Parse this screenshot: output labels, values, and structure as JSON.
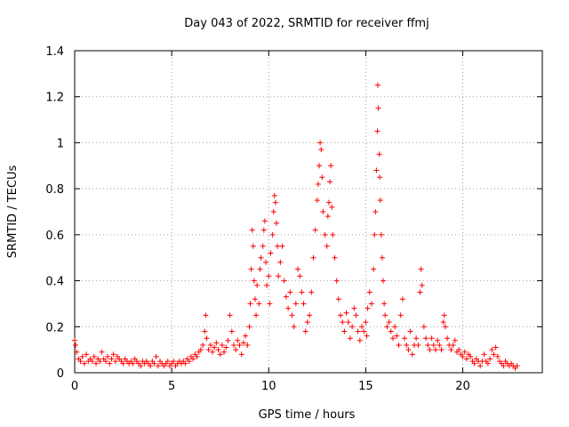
{
  "chart_data": {
    "type": "scatter",
    "title": "Day 043 of 2022, SRMTID for receiver ffmj",
    "xlabel": "GPS time / hours",
    "ylabel": "SRMTID / TECUs",
    "xlim": [
      0,
      24.1
    ],
    "ylim": [
      0,
      1.4
    ],
    "xticks": [
      0,
      5,
      10,
      15,
      20
    ],
    "xtick_labels": [
      "0",
      "5",
      "10",
      "15",
      "20"
    ],
    "yticks": [
      0,
      0.2,
      0.4,
      0.6,
      0.8,
      1.0,
      1.2,
      1.4
    ],
    "ytick_labels": [
      "0",
      "0.2",
      "0.4",
      "0.6",
      "0.8",
      "1",
      "1.2",
      "1.4"
    ],
    "grid": true,
    "marker": "+",
    "color": "#ff0000",
    "series": [
      {
        "name": "SRMTID",
        "points": [
          [
            0.0,
            0.14
          ],
          [
            0.05,
            0.12
          ],
          [
            0.1,
            0.09
          ],
          [
            0.2,
            0.06
          ],
          [
            0.3,
            0.05
          ],
          [
            0.4,
            0.07
          ],
          [
            0.5,
            0.04
          ],
          [
            0.6,
            0.08
          ],
          [
            0.7,
            0.05
          ],
          [
            0.8,
            0.06
          ],
          [
            0.9,
            0.05
          ],
          [
            1.0,
            0.07
          ],
          [
            1.1,
            0.04
          ],
          [
            1.2,
            0.06
          ],
          [
            1.3,
            0.05
          ],
          [
            1.4,
            0.09
          ],
          [
            1.5,
            0.06
          ],
          [
            1.6,
            0.05
          ],
          [
            1.7,
            0.07
          ],
          [
            1.8,
            0.04
          ],
          [
            1.9,
            0.06
          ],
          [
            2.0,
            0.08
          ],
          [
            2.1,
            0.05
          ],
          [
            2.2,
            0.07
          ],
          [
            2.3,
            0.06
          ],
          [
            2.4,
            0.05
          ],
          [
            2.5,
            0.04
          ],
          [
            2.6,
            0.06
          ],
          [
            2.7,
            0.05
          ],
          [
            2.8,
            0.04
          ],
          [
            2.9,
            0.05
          ],
          [
            3.0,
            0.04
          ],
          [
            3.1,
            0.06
          ],
          [
            3.2,
            0.05
          ],
          [
            3.3,
            0.04
          ],
          [
            3.4,
            0.03
          ],
          [
            3.5,
            0.05
          ],
          [
            3.6,
            0.04
          ],
          [
            3.7,
            0.05
          ],
          [
            3.8,
            0.04
          ],
          [
            3.9,
            0.03
          ],
          [
            4.0,
            0.05
          ],
          [
            4.1,
            0.04
          ],
          [
            4.2,
            0.07
          ],
          [
            4.3,
            0.03
          ],
          [
            4.4,
            0.05
          ],
          [
            4.5,
            0.04
          ],
          [
            4.6,
            0.03
          ],
          [
            4.7,
            0.04
          ],
          [
            4.8,
            0.05
          ],
          [
            4.9,
            0.03
          ],
          [
            5.0,
            0.04
          ],
          [
            5.1,
            0.05
          ],
          [
            5.2,
            0.03
          ],
          [
            5.3,
            0.04
          ],
          [
            5.4,
            0.05
          ],
          [
            5.5,
            0.04
          ],
          [
            5.6,
            0.05
          ],
          [
            5.7,
            0.04
          ],
          [
            5.8,
            0.06
          ],
          [
            5.9,
            0.05
          ],
          [
            6.0,
            0.07
          ],
          [
            6.1,
            0.06
          ],
          [
            6.2,
            0.08
          ],
          [
            6.3,
            0.07
          ],
          [
            6.4,
            0.09
          ],
          [
            6.5,
            0.1
          ],
          [
            6.6,
            0.12
          ],
          [
            6.7,
            0.18
          ],
          [
            6.75,
            0.25
          ],
          [
            6.8,
            0.15
          ],
          [
            6.9,
            0.1
          ],
          [
            7.0,
            0.12
          ],
          [
            7.1,
            0.09
          ],
          [
            7.2,
            0.11
          ],
          [
            7.3,
            0.13
          ],
          [
            7.4,
            0.1
          ],
          [
            7.5,
            0.08
          ],
          [
            7.6,
            0.12
          ],
          [
            7.7,
            0.09
          ],
          [
            7.8,
            0.11
          ],
          [
            7.9,
            0.14
          ],
          [
            8.0,
            0.25
          ],
          [
            8.1,
            0.18
          ],
          [
            8.2,
            0.12
          ],
          [
            8.3,
            0.1
          ],
          [
            8.4,
            0.14
          ],
          [
            8.5,
            0.12
          ],
          [
            8.6,
            0.08
          ],
          [
            8.7,
            0.13
          ],
          [
            8.8,
            0.16
          ],
          [
            8.9,
            0.12
          ],
          [
            9.0,
            0.2
          ],
          [
            9.05,
            0.3
          ],
          [
            9.1,
            0.45
          ],
          [
            9.15,
            0.62
          ],
          [
            9.2,
            0.55
          ],
          [
            9.25,
            0.4
          ],
          [
            9.3,
            0.32
          ],
          [
            9.35,
            0.25
          ],
          [
            9.4,
            0.38
          ],
          [
            9.5,
            0.3
          ],
          [
            9.55,
            0.45
          ],
          [
            9.6,
            0.5
          ],
          [
            9.7,
            0.55
          ],
          [
            9.75,
            0.62
          ],
          [
            9.8,
            0.66
          ],
          [
            9.85,
            0.48
          ],
          [
            9.9,
            0.38
          ],
          [
            10.0,
            0.42
          ],
          [
            10.05,
            0.3
          ],
          [
            10.1,
            0.52
          ],
          [
            10.2,
            0.6
          ],
          [
            10.25,
            0.7
          ],
          [
            10.3,
            0.77
          ],
          [
            10.35,
            0.74
          ],
          [
            10.4,
            0.65
          ],
          [
            10.45,
            0.55
          ],
          [
            10.5,
            0.42
          ],
          [
            10.6,
            0.48
          ],
          [
            10.7,
            0.55
          ],
          [
            10.8,
            0.4
          ],
          [
            10.9,
            0.33
          ],
          [
            11.0,
            0.28
          ],
          [
            11.1,
            0.35
          ],
          [
            11.2,
            0.25
          ],
          [
            11.3,
            0.2
          ],
          [
            11.4,
            0.3
          ],
          [
            11.5,
            0.45
          ],
          [
            11.6,
            0.42
          ],
          [
            11.7,
            0.35
          ],
          [
            11.8,
            0.3
          ],
          [
            11.9,
            0.18
          ],
          [
            12.0,
            0.22
          ],
          [
            12.1,
            0.25
          ],
          [
            12.2,
            0.35
          ],
          [
            12.3,
            0.5
          ],
          [
            12.4,
            0.62
          ],
          [
            12.5,
            0.75
          ],
          [
            12.55,
            0.82
          ],
          [
            12.6,
            0.9
          ],
          [
            12.65,
            1.0
          ],
          [
            12.7,
            0.97
          ],
          [
            12.75,
            0.85
          ],
          [
            12.8,
            0.7
          ],
          [
            12.9,
            0.6
          ],
          [
            13.0,
            0.55
          ],
          [
            13.05,
            0.68
          ],
          [
            13.1,
            0.74
          ],
          [
            13.15,
            0.83
          ],
          [
            13.2,
            0.9
          ],
          [
            13.25,
            0.72
          ],
          [
            13.3,
            0.6
          ],
          [
            13.4,
            0.5
          ],
          [
            13.5,
            0.4
          ],
          [
            13.6,
            0.32
          ],
          [
            13.7,
            0.25
          ],
          [
            13.8,
            0.22
          ],
          [
            13.9,
            0.18
          ],
          [
            14.0,
            0.26
          ],
          [
            14.1,
            0.22
          ],
          [
            14.2,
            0.15
          ],
          [
            14.3,
            0.2
          ],
          [
            14.4,
            0.28
          ],
          [
            14.5,
            0.25
          ],
          [
            14.6,
            0.18
          ],
          [
            14.7,
            0.14
          ],
          [
            14.8,
            0.2
          ],
          [
            14.9,
            0.18
          ],
          [
            15.0,
            0.22
          ],
          [
            15.05,
            0.16
          ],
          [
            15.1,
            0.28
          ],
          [
            15.2,
            0.35
          ],
          [
            15.3,
            0.3
          ],
          [
            15.4,
            0.45
          ],
          [
            15.45,
            0.6
          ],
          [
            15.5,
            0.7
          ],
          [
            15.55,
            0.88
          ],
          [
            15.6,
            1.05
          ],
          [
            15.62,
            1.25
          ],
          [
            15.65,
            1.15
          ],
          [
            15.7,
            0.95
          ],
          [
            15.72,
            0.85
          ],
          [
            15.75,
            0.75
          ],
          [
            15.8,
            0.6
          ],
          [
            15.85,
            0.5
          ],
          [
            15.9,
            0.4
          ],
          [
            15.95,
            0.3
          ],
          [
            16.0,
            0.25
          ],
          [
            16.1,
            0.2
          ],
          [
            16.2,
            0.22
          ],
          [
            16.3,
            0.18
          ],
          [
            16.4,
            0.15
          ],
          [
            16.5,
            0.2
          ],
          [
            16.6,
            0.16
          ],
          [
            16.7,
            0.12
          ],
          [
            16.8,
            0.25
          ],
          [
            16.9,
            0.32
          ],
          [
            17.0,
            0.15
          ],
          [
            17.1,
            0.12
          ],
          [
            17.2,
            0.1
          ],
          [
            17.3,
            0.18
          ],
          [
            17.4,
            0.08
          ],
          [
            17.5,
            0.12
          ],
          [
            17.6,
            0.15
          ],
          [
            17.7,
            0.12
          ],
          [
            17.8,
            0.35
          ],
          [
            17.85,
            0.45
          ],
          [
            17.9,
            0.38
          ],
          [
            18.0,
            0.2
          ],
          [
            18.1,
            0.15
          ],
          [
            18.2,
            0.12
          ],
          [
            18.3,
            0.1
          ],
          [
            18.4,
            0.15
          ],
          [
            18.5,
            0.12
          ],
          [
            18.6,
            0.1
          ],
          [
            18.7,
            0.14
          ],
          [
            18.8,
            0.12
          ],
          [
            18.9,
            0.1
          ],
          [
            19.0,
            0.22
          ],
          [
            19.05,
            0.25
          ],
          [
            19.1,
            0.2
          ],
          [
            19.2,
            0.15
          ],
          [
            19.3,
            0.12
          ],
          [
            19.4,
            0.1
          ],
          [
            19.5,
            0.12
          ],
          [
            19.6,
            0.14
          ],
          [
            19.7,
            0.09
          ],
          [
            19.8,
            0.1
          ],
          [
            19.9,
            0.08
          ],
          [
            20.0,
            0.07
          ],
          [
            20.1,
            0.09
          ],
          [
            20.2,
            0.06
          ],
          [
            20.3,
            0.08
          ],
          [
            20.4,
            0.07
          ],
          [
            20.5,
            0.05
          ],
          [
            20.6,
            0.04
          ],
          [
            20.7,
            0.06
          ],
          [
            20.8,
            0.05
          ],
          [
            20.9,
            0.03
          ],
          [
            21.0,
            0.05
          ],
          [
            21.1,
            0.08
          ],
          [
            21.2,
            0.05
          ],
          [
            21.3,
            0.04
          ],
          [
            21.4,
            0.06
          ],
          [
            21.5,
            0.1
          ],
          [
            21.6,
            0.08
          ],
          [
            21.7,
            0.11
          ],
          [
            21.8,
            0.07
          ],
          [
            21.9,
            0.05
          ],
          [
            22.0,
            0.04
          ],
          [
            22.1,
            0.03
          ],
          [
            22.2,
            0.05
          ],
          [
            22.3,
            0.04
          ],
          [
            22.4,
            0.03
          ],
          [
            22.5,
            0.04
          ],
          [
            22.6,
            0.03
          ],
          [
            22.7,
            0.02
          ],
          [
            22.8,
            0.03
          ]
        ]
      }
    ]
  }
}
